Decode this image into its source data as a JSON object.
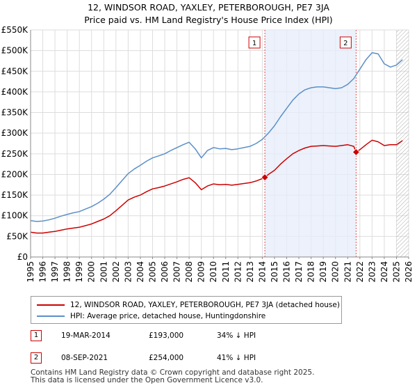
{
  "chart_data": {
    "type": "line",
    "title": "12, WINDSOR ROAD, YAXLEY, PETERBOROUGH, PE7 3JA",
    "subtitle": "Price paid vs. HM Land Registry's House Price Index (HPI)",
    "xlabel": "",
    "ylabel": "",
    "xlim": [
      1995,
      2026
    ],
    "ylim": [
      0,
      550000
    ],
    "x_ticks": [
      "1995",
      "1996",
      "1997",
      "1998",
      "1999",
      "2000",
      "2001",
      "2002",
      "2003",
      "2004",
      "2005",
      "2006",
      "2007",
      "2008",
      "2009",
      "2010",
      "2011",
      "2012",
      "2013",
      "2014",
      "2015",
      "2016",
      "2017",
      "2018",
      "2019",
      "2020",
      "2021",
      "2022",
      "2023",
      "2024",
      "2025",
      "2026"
    ],
    "y_ticks": [
      {
        "value": 0,
        "label": "£0"
      },
      {
        "value": 50000,
        "label": "£50K"
      },
      {
        "value": 100000,
        "label": "£100K"
      },
      {
        "value": 150000,
        "label": "£150K"
      },
      {
        "value": 200000,
        "label": "£200K"
      },
      {
        "value": 250000,
        "label": "£250K"
      },
      {
        "value": 300000,
        "label": "£300K"
      },
      {
        "value": 350000,
        "label": "£350K"
      },
      {
        "value": 400000,
        "label": "£400K"
      },
      {
        "value": 450000,
        "label": "£450K"
      },
      {
        "value": 500000,
        "label": "£500K"
      },
      {
        "value": 550000,
        "label": "£550K"
      }
    ],
    "grid": true,
    "shaded_region": [
      2014.21,
      2021.69
    ],
    "forecast_hatch_from": 2025.0,
    "series": [
      {
        "name": "12, WINDSOR ROAD, YAXLEY, PETERBOROUGH, PE7 3JA (detached house)",
        "color": "#cc0000",
        "x": [
          1995.0,
          1995.5,
          1996.0,
          1996.5,
          1997.0,
          1997.5,
          1998.0,
          1998.5,
          1999.0,
          1999.5,
          2000.0,
          2000.5,
          2001.0,
          2001.5,
          2002.0,
          2002.5,
          2003.0,
          2003.5,
          2004.0,
          2004.5,
          2005.0,
          2005.5,
          2006.0,
          2006.5,
          2007.0,
          2007.5,
          2008.0,
          2008.5,
          2009.0,
          2009.5,
          2010.0,
          2010.5,
          2011.0,
          2011.5,
          2012.0,
          2012.5,
          2013.0,
          2013.5,
          2014.0,
          2014.21,
          2014.5,
          2015.0,
          2015.5,
          2016.0,
          2016.5,
          2017.0,
          2017.5,
          2018.0,
          2018.5,
          2019.0,
          2019.5,
          2020.0,
          2020.5,
          2021.0,
          2021.5,
          2021.69,
          2022.0,
          2022.5,
          2023.0,
          2023.5,
          2024.0,
          2024.5,
          2025.0,
          2025.5
        ],
        "values": [
          60000,
          58000,
          58000,
          60000,
          62000,
          65000,
          68000,
          70000,
          72000,
          76000,
          80000,
          86000,
          92000,
          100000,
          112000,
          125000,
          138000,
          145000,
          150000,
          158000,
          165000,
          168000,
          172000,
          177000,
          182000,
          188000,
          192000,
          180000,
          163000,
          172000,
          177000,
          175000,
          176000,
          174000,
          176000,
          178000,
          180000,
          184000,
          190000,
          193000,
          200000,
          210000,
          225000,
          238000,
          250000,
          258000,
          264000,
          268000,
          269000,
          270000,
          269000,
          268000,
          270000,
          272000,
          268000,
          254000,
          260000,
          272000,
          283000,
          279000,
          270000,
          272000,
          272000,
          282000
        ]
      },
      {
        "name": "HPI: Average price, detached house, Huntingdonshire",
        "color": "#5b8fc7",
        "x": [
          1995.0,
          1995.5,
          1996.0,
          1996.5,
          1997.0,
          1997.5,
          1998.0,
          1998.5,
          1999.0,
          1999.5,
          2000.0,
          2000.5,
          2001.0,
          2001.5,
          2002.0,
          2002.5,
          2003.0,
          2003.5,
          2004.0,
          2004.5,
          2005.0,
          2005.5,
          2006.0,
          2006.5,
          2007.0,
          2007.5,
          2008.0,
          2008.5,
          2009.0,
          2009.5,
          2010.0,
          2010.5,
          2011.0,
          2011.5,
          2012.0,
          2012.5,
          2013.0,
          2013.5,
          2014.0,
          2014.5,
          2015.0,
          2015.5,
          2016.0,
          2016.5,
          2017.0,
          2017.5,
          2018.0,
          2018.5,
          2019.0,
          2019.5,
          2020.0,
          2020.5,
          2021.0,
          2021.5,
          2022.0,
          2022.5,
          2023.0,
          2023.5,
          2024.0,
          2024.5,
          2025.0,
          2025.5
        ],
        "values": [
          88000,
          86000,
          87000,
          90000,
          94000,
          99000,
          103000,
          107000,
          110000,
          116000,
          122000,
          130000,
          140000,
          152000,
          168000,
          185000,
          202000,
          213000,
          222000,
          232000,
          240000,
          245000,
          250000,
          258000,
          265000,
          272000,
          278000,
          262000,
          240000,
          258000,
          265000,
          262000,
          263000,
          260000,
          262000,
          265000,
          268000,
          275000,
          285000,
          300000,
          318000,
          340000,
          360000,
          380000,
          395000,
          405000,
          410000,
          412000,
          412000,
          410000,
          408000,
          410000,
          418000,
          432000,
          455000,
          478000,
          495000,
          492000,
          468000,
          460000,
          465000,
          478000
        ]
      }
    ],
    "transactions": [
      {
        "label": "1",
        "x": 2014.21,
        "price": 193000
      },
      {
        "label": "2",
        "x": 2021.69,
        "price": 254000
      }
    ]
  },
  "legend": {
    "red_label": "12, WINDSOR ROAD, YAXLEY, PETERBOROUGH, PE7 3JA (detached house)",
    "blue_label": "HPI: Average price, detached house, Huntingdonshire"
  },
  "table": {
    "rows": [
      {
        "num": "1",
        "date": "19-MAR-2014",
        "price": "£193,000",
        "hpi": "34% ↓ HPI"
      },
      {
        "num": "2",
        "date": "08-SEP-2021",
        "price": "£254,000",
        "hpi": "41% ↓ HPI"
      }
    ]
  },
  "footer": {
    "line1": "Contains HM Land Registry data © Crown copyright and database right 2025.",
    "line2": "This data is licensed under the Open Government Licence v3.0."
  }
}
